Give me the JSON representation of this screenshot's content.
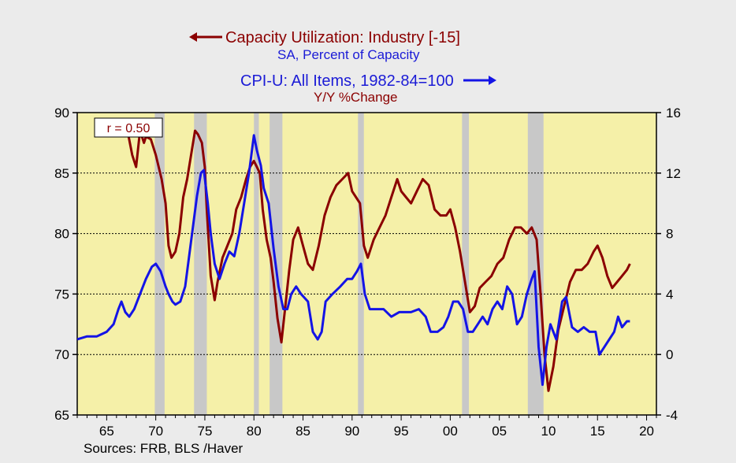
{
  "titles": {
    "left_series_title": "Capacity Utilization: Industry [-15]",
    "left_series_subtitle": "SA, Percent of Capacity",
    "right_series_title": "CPI-U: All Items, 1982-84=100",
    "right_series_subtitle": "Y/Y %Change"
  },
  "source": "Sources:  FRB, BLS /Haver",
  "colors": {
    "capacity": "#8b0000",
    "cpi": "#1414e6",
    "plot_bg": "#f5f0a8",
    "recession": "#c8c8c8"
  },
  "chart_data": {
    "type": "line",
    "correlation_label": "r = 0.50",
    "x_label_range": [
      1962,
      2021
    ],
    "x_ticks": [
      {
        "value": 1965,
        "label": "65"
      },
      {
        "value": 1970,
        "label": "70"
      },
      {
        "value": 1975,
        "label": "75"
      },
      {
        "value": 1980,
        "label": "80"
      },
      {
        "value": 1985,
        "label": "85"
      },
      {
        "value": 1990,
        "label": "90"
      },
      {
        "value": 1995,
        "label": "95"
      },
      {
        "value": 2000,
        "label": "00"
      },
      {
        "value": 2005,
        "label": "05"
      },
      {
        "value": 2010,
        "label": "10"
      },
      {
        "value": 2015,
        "label": "15"
      },
      {
        "value": 2020,
        "label": "20"
      }
    ],
    "y_left": {
      "range": [
        65,
        90
      ],
      "ticks": [
        65,
        70,
        75,
        80,
        85,
        90
      ]
    },
    "y_right": {
      "range": [
        -4,
        16
      ],
      "ticks": [
        -4,
        0,
        4,
        8,
        12,
        16
      ]
    },
    "gridlines_left": [
      70,
      75,
      80,
      85
    ],
    "recessions": [
      [
        1969.9,
        1970.9
      ],
      [
        1973.9,
        1975.2
      ],
      [
        1980.0,
        1980.5
      ],
      [
        1981.6,
        1982.9
      ],
      [
        1990.6,
        1991.2
      ],
      [
        2001.2,
        2001.9
      ],
      [
        2007.9,
        2009.5
      ]
    ],
    "series": [
      {
        "name": "Capacity Utilization: Industry [-15]",
        "axis": "left",
        "x": [
          1967.0,
          1967.6,
          1968.0,
          1968.4,
          1968.8,
          1969.0,
          1969.5,
          1970.0,
          1970.6,
          1971.0,
          1971.3,
          1971.6,
          1972.0,
          1972.4,
          1972.8,
          1973.2,
          1973.6,
          1974.0,
          1974.3,
          1974.7,
          1975.0,
          1975.2,
          1975.6,
          1976.0,
          1976.3,
          1976.8,
          1977.3,
          1977.8,
          1978.2,
          1978.7,
          1979.2,
          1979.6,
          1980.0,
          1980.3,
          1980.6,
          1980.9,
          1981.3,
          1981.7,
          1982.0,
          1982.4,
          1982.8,
          1983.2,
          1983.6,
          1984.0,
          1984.5,
          1985.0,
          1985.5,
          1986.0,
          1986.6,
          1987.2,
          1987.8,
          1988.4,
          1989.0,
          1989.6,
          1990.0,
          1990.4,
          1990.8,
          1991.2,
          1991.6,
          1992.2,
          1992.8,
          1993.4,
          1994.0,
          1994.6,
          1995.0,
          1995.5,
          1996.0,
          1996.6,
          1997.2,
          1997.8,
          1998.4,
          1999.0,
          1999.6,
          2000.0,
          2000.5,
          2001.0,
          2001.5,
          2002.0,
          2002.5,
          2003.0,
          2003.6,
          2004.2,
          2004.8,
          2005.4,
          2006.0,
          2006.6,
          2007.2,
          2007.8,
          2008.3,
          2008.8,
          2009.2,
          2009.6,
          2010.0,
          2010.5,
          2011.0,
          2011.6,
          2012.2,
          2012.8,
          2013.4,
          2014.0,
          2014.6,
          2015.0,
          2015.5,
          2016.0,
          2016.5,
          2017.0,
          2017.5,
          2018.0,
          2018.3
        ],
        "values": [
          89.0,
          86.5,
          85.5,
          88.5,
          87.5,
          88.0,
          87.8,
          86.5,
          84.5,
          82.5,
          79.0,
          78.0,
          78.5,
          80.0,
          83.0,
          84.5,
          86.5,
          88.5,
          88.2,
          87.5,
          85.5,
          82.0,
          76.5,
          74.5,
          76.0,
          78.0,
          79.0,
          80.0,
          82.0,
          83.0,
          84.5,
          85.5,
          86.0,
          85.5,
          85.0,
          82.0,
          79.5,
          78.0,
          76.0,
          73.0,
          71.0,
          74.0,
          77.0,
          79.5,
          80.5,
          79.0,
          77.5,
          77.0,
          79.0,
          81.5,
          83.0,
          84.0,
          84.5,
          85.0,
          83.5,
          83.0,
          82.5,
          79.0,
          78.0,
          79.5,
          80.5,
          81.5,
          83.0,
          84.5,
          83.5,
          83.0,
          82.5,
          83.5,
          84.5,
          84.0,
          82.0,
          81.5,
          81.5,
          82.0,
          80.5,
          78.5,
          76.0,
          73.5,
          74.0,
          75.5,
          76.0,
          76.5,
          77.5,
          78.0,
          79.5,
          80.5,
          80.5,
          80.0,
          80.5,
          79.5,
          75.0,
          70.0,
          67.0,
          69.0,
          72.0,
          74.0,
          76.0,
          77.0,
          77.0,
          77.5,
          78.5,
          79.0,
          78.0,
          76.5,
          75.5,
          76.0,
          76.5,
          77.0,
          77.5
        ]
      },
      {
        "name": "CPI-U: All Items, 1982-84=100",
        "axis": "right",
        "x": [
          1962.0,
          1963.0,
          1964.0,
          1965.0,
          1965.7,
          1966.2,
          1966.5,
          1966.9,
          1967.3,
          1967.8,
          1968.4,
          1969.0,
          1969.6,
          1970.0,
          1970.5,
          1971.0,
          1971.3,
          1971.7,
          1972.0,
          1972.5,
          1973.0,
          1973.4,
          1973.8,
          1974.2,
          1974.6,
          1974.9,
          1975.3,
          1975.6,
          1976.0,
          1976.5,
          1977.0,
          1977.5,
          1978.0,
          1978.5,
          1979.0,
          1979.5,
          1980.0,
          1980.3,
          1980.7,
          1981.0,
          1981.5,
          1982.0,
          1982.5,
          1983.0,
          1983.4,
          1983.8,
          1984.3,
          1984.8,
          1985.5,
          1986.0,
          1986.5,
          1986.9,
          1987.3,
          1988.0,
          1988.8,
          1989.5,
          1990.0,
          1990.5,
          1990.9,
          1991.3,
          1991.8,
          1992.5,
          1993.2,
          1994.0,
          1994.8,
          1995.5,
          1996.0,
          1996.8,
          1997.5,
          1998.0,
          1998.7,
          1999.3,
          1999.8,
          2000.3,
          2000.8,
          2001.3,
          2001.8,
          2002.3,
          2002.8,
          2003.3,
          2003.8,
          2004.3,
          2004.8,
          2005.3,
          2005.8,
          2006.3,
          2006.8,
          2007.3,
          2007.8,
          2008.3,
          2008.6,
          2009.0,
          2009.4,
          2009.8,
          2010.2,
          2010.8,
          2011.4,
          2011.8,
          2012.4,
          2013.0,
          2013.6,
          2014.2,
          2014.8,
          2015.2,
          2015.7,
          2016.2,
          2016.7,
          2017.1,
          2017.5,
          2018.0,
          2018.3
        ],
        "values": [
          1.0,
          1.2,
          1.2,
          1.5,
          2.0,
          3.0,
          3.5,
          2.8,
          2.5,
          3.0,
          4.0,
          5.0,
          5.8,
          6.0,
          5.5,
          4.5,
          4.0,
          3.5,
          3.3,
          3.5,
          4.5,
          6.5,
          8.5,
          10.5,
          12.0,
          12.2,
          10.0,
          8.0,
          6.0,
          5.0,
          6.0,
          6.8,
          6.5,
          8.0,
          10.0,
          12.0,
          14.5,
          13.5,
          12.5,
          11.0,
          10.0,
          7.0,
          4.5,
          3.0,
          3.0,
          4.0,
          4.5,
          4.0,
          3.5,
          1.5,
          1.0,
          1.5,
          3.5,
          4.0,
          4.5,
          5.0,
          5.0,
          5.5,
          6.0,
          4.0,
          3.0,
          3.0,
          3.0,
          2.5,
          2.8,
          2.8,
          2.8,
          3.0,
          2.5,
          1.5,
          1.5,
          1.8,
          2.5,
          3.5,
          3.5,
          3.0,
          1.5,
          1.5,
          2.0,
          2.5,
          2.0,
          3.0,
          3.5,
          3.0,
          4.5,
          4.0,
          2.0,
          2.5,
          4.0,
          5.0,
          5.5,
          0.5,
          -2.0,
          0.5,
          2.0,
          1.0,
          3.5,
          3.8,
          1.8,
          1.5,
          1.8,
          1.5,
          1.5,
          0.0,
          0.5,
          1.0,
          1.5,
          2.5,
          1.8,
          2.2,
          2.2
        ]
      }
    ]
  }
}
